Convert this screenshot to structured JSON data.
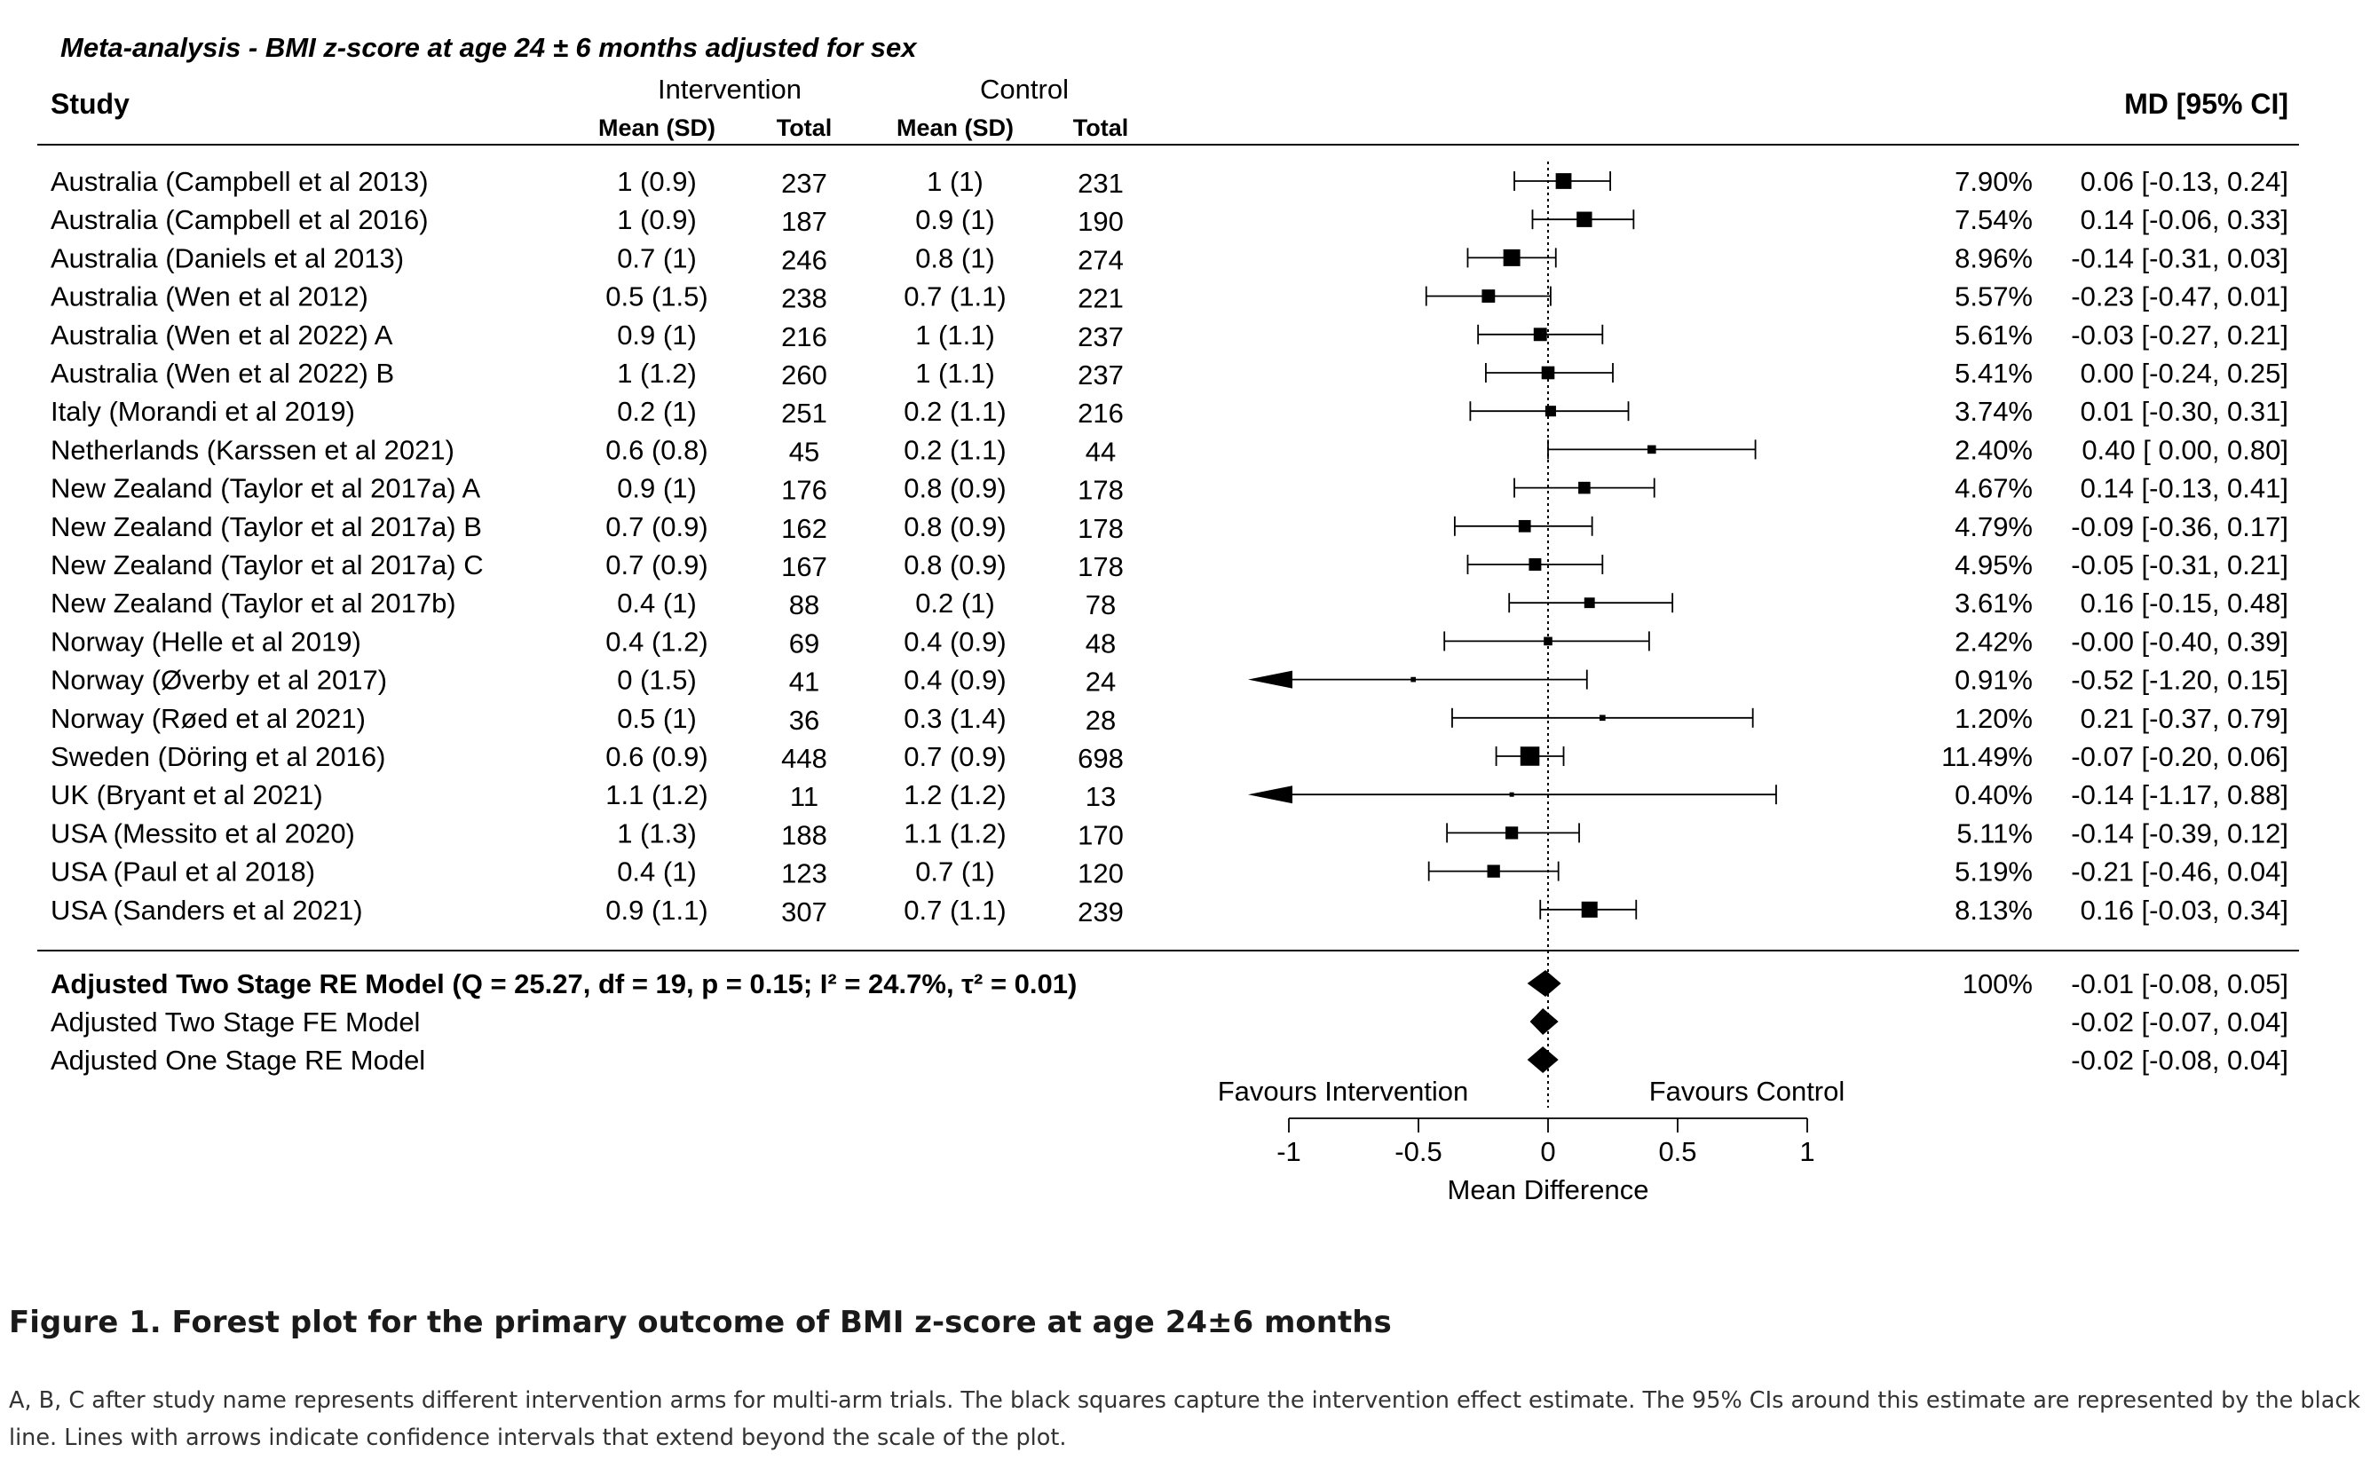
{
  "chart_data": {
    "type": "forest",
    "title": "Meta-analysis - BMI z-score at age 24 ± 6 months adjusted for sex",
    "headers": {
      "study": "Study",
      "intervention": "Intervention",
      "control": "Control",
      "mean_sd": "Mean (SD)",
      "total": "Total",
      "md_ci": "MD [95% CI]"
    },
    "xlabel": "Mean Difference",
    "xlim": [
      -1,
      1
    ],
    "xticks": [
      -1,
      -0.5,
      0,
      0.5,
      1
    ],
    "xtick_labels": [
      "-1",
      "-0.5",
      "0",
      "0.5",
      "1"
    ],
    "favours_left": "Favours Intervention",
    "favours_right": "Favours Control",
    "studies": [
      {
        "study": "Australia (Campbell et al 2013)",
        "i_msd": "1 (0.9)",
        "i_n": "237",
        "c_msd": "1 (1)",
        "c_n": "231",
        "weight": "7.90%",
        "ci": "0.06 [-0.13, 0.24]",
        "md": 0.06,
        "lo": -0.13,
        "hi": 0.24,
        "w": 7.9
      },
      {
        "study": "Australia (Campbell et al 2016)",
        "i_msd": "1 (0.9)",
        "i_n": "187",
        "c_msd": "0.9 (1)",
        "c_n": "190",
        "weight": "7.54%",
        "ci": "0.14 [-0.06, 0.33]",
        "md": 0.14,
        "lo": -0.06,
        "hi": 0.33,
        "w": 7.54
      },
      {
        "study": "Australia (Daniels et al 2013)",
        "i_msd": "0.7 (1)",
        "i_n": "246",
        "c_msd": "0.8 (1)",
        "c_n": "274",
        "weight": "8.96%",
        "ci": "-0.14 [-0.31, 0.03]",
        "md": -0.14,
        "lo": -0.31,
        "hi": 0.03,
        "w": 8.96
      },
      {
        "study": "Australia (Wen et al 2012)",
        "i_msd": "0.5 (1.5)",
        "i_n": "238",
        "c_msd": "0.7 (1.1)",
        "c_n": "221",
        "weight": "5.57%",
        "ci": "-0.23 [-0.47, 0.01]",
        "md": -0.23,
        "lo": -0.47,
        "hi": 0.01,
        "w": 5.57
      },
      {
        "study": "Australia (Wen et al 2022) A",
        "i_msd": "0.9 (1)",
        "i_n": "216",
        "c_msd": "1 (1.1)",
        "c_n": "237",
        "weight": "5.61%",
        "ci": "-0.03 [-0.27, 0.21]",
        "md": -0.03,
        "lo": -0.27,
        "hi": 0.21,
        "w": 5.61
      },
      {
        "study": "Australia (Wen et al 2022) B",
        "i_msd": "1 (1.2)",
        "i_n": "260",
        "c_msd": "1 (1.1)",
        "c_n": "237",
        "weight": "5.41%",
        "ci": "0.00 [-0.24, 0.25]",
        "md": 0.0,
        "lo": -0.24,
        "hi": 0.25,
        "w": 5.41
      },
      {
        "study": "Italy (Morandi et al 2019)",
        "i_msd": "0.2 (1)",
        "i_n": "251",
        "c_msd": "0.2 (1.1)",
        "c_n": "216",
        "weight": "3.74%",
        "ci": "0.01 [-0.30, 0.31]",
        "md": 0.01,
        "lo": -0.3,
        "hi": 0.31,
        "w": 3.74
      },
      {
        "study": "Netherlands (Karssen et al 2021)",
        "i_msd": "0.6 (0.8)",
        "i_n": "45",
        "c_msd": "0.2 (1.1)",
        "c_n": "44",
        "weight": "2.40%",
        "ci": "0.40 [ 0.00, 0.80]",
        "md": 0.4,
        "lo": 0.0,
        "hi": 0.8,
        "w": 2.4
      },
      {
        "study": "New Zealand (Taylor et al 2017a) A",
        "i_msd": "0.9 (1)",
        "i_n": "176",
        "c_msd": "0.8 (0.9)",
        "c_n": "178",
        "weight": "4.67%",
        "ci": "0.14 [-0.13, 0.41]",
        "md": 0.14,
        "lo": -0.13,
        "hi": 0.41,
        "w": 4.67
      },
      {
        "study": "New Zealand (Taylor et al 2017a) B",
        "i_msd": "0.7 (0.9)",
        "i_n": "162",
        "c_msd": "0.8 (0.9)",
        "c_n": "178",
        "weight": "4.79%",
        "ci": "-0.09 [-0.36, 0.17]",
        "md": -0.09,
        "lo": -0.36,
        "hi": 0.17,
        "w": 4.79
      },
      {
        "study": "New Zealand (Taylor et al 2017a) C",
        "i_msd": "0.7 (0.9)",
        "i_n": "167",
        "c_msd": "0.8 (0.9)",
        "c_n": "178",
        "weight": "4.95%",
        "ci": "-0.05 [-0.31, 0.21]",
        "md": -0.05,
        "lo": -0.31,
        "hi": 0.21,
        "w": 4.95
      },
      {
        "study": "New Zealand (Taylor et al 2017b)",
        "i_msd": "0.4 (1)",
        "i_n": "88",
        "c_msd": "0.2 (1)",
        "c_n": "78",
        "weight": "3.61%",
        "ci": "0.16 [-0.15, 0.48]",
        "md": 0.16,
        "lo": -0.15,
        "hi": 0.48,
        "w": 3.61
      },
      {
        "study": "Norway (Helle et al 2019)",
        "i_msd": "0.4 (1.2)",
        "i_n": "69",
        "c_msd": "0.4 (0.9)",
        "c_n": "48",
        "weight": "2.42%",
        "ci": "-0.00 [-0.40, 0.39]",
        "md": -0.0,
        "lo": -0.4,
        "hi": 0.39,
        "w": 2.42
      },
      {
        "study": "Norway (Øverby et al 2017)",
        "i_msd": "0 (1.5)",
        "i_n": "41",
        "c_msd": "0.4 (0.9)",
        "c_n": "24",
        "weight": "0.91%",
        "ci": "-0.52 [-1.20, 0.15]",
        "md": -0.52,
        "lo": -1.2,
        "hi": 0.15,
        "w": 0.91
      },
      {
        "study": "Norway (Røed et al 2021)",
        "i_msd": "0.5 (1)",
        "i_n": "36",
        "c_msd": "0.3 (1.4)",
        "c_n": "28",
        "weight": "1.20%",
        "ci": "0.21 [-0.37, 0.79]",
        "md": 0.21,
        "lo": -0.37,
        "hi": 0.79,
        "w": 1.2
      },
      {
        "study": "Sweden (Döring et al 2016)",
        "i_msd": "0.6 (0.9)",
        "i_n": "448",
        "c_msd": "0.7 (0.9)",
        "c_n": "698",
        "weight": "11.49%",
        "ci": "-0.07 [-0.20, 0.06]",
        "md": -0.07,
        "lo": -0.2,
        "hi": 0.06,
        "w": 11.49
      },
      {
        "study": "UK (Bryant et al 2021)",
        "i_msd": "1.1 (1.2)",
        "i_n": "11",
        "c_msd": "1.2 (1.2)",
        "c_n": "13",
        "weight": "0.40%",
        "ci": "-0.14 [-1.17, 0.88]",
        "md": -0.14,
        "lo": -1.17,
        "hi": 0.88,
        "w": 0.4
      },
      {
        "study": "USA (Messito et al 2020)",
        "i_msd": "1 (1.3)",
        "i_n": "188",
        "c_msd": "1.1 (1.2)",
        "c_n": "170",
        "weight": "5.11%",
        "ci": "-0.14 [-0.39, 0.12]",
        "md": -0.14,
        "lo": -0.39,
        "hi": 0.12,
        "w": 5.11
      },
      {
        "study": "USA (Paul et al 2018)",
        "i_msd": "0.4 (1)",
        "i_n": "123",
        "c_msd": "0.7 (1)",
        "c_n": "120",
        "weight": "5.19%",
        "ci": "-0.21 [-0.46, 0.04]",
        "md": -0.21,
        "lo": -0.46,
        "hi": 0.04,
        "w": 5.19
      },
      {
        "study": "USA (Sanders et al 2021)",
        "i_msd": "0.9 (1.1)",
        "i_n": "307",
        "c_msd": "0.7 (1.1)",
        "c_n": "239",
        "weight": "8.13%",
        "ci": "0.16 [-0.03, 0.34]",
        "md": 0.16,
        "lo": -0.03,
        "hi": 0.34,
        "w": 8.13
      }
    ],
    "summary": [
      {
        "label": "Adjusted Two Stage RE Model (Q = 25.27, df = 19, p = 0.15; I² = 24.7%, τ² = 0.01)",
        "bold": true,
        "weight": "100%",
        "ci": "-0.01 [-0.08, 0.05]",
        "md": -0.01,
        "lo": -0.08,
        "hi": 0.05
      },
      {
        "label": "Adjusted Two Stage FE Model",
        "bold": false,
        "weight": "",
        "ci": "-0.02 [-0.07, 0.04]",
        "md": -0.02,
        "lo": -0.07,
        "hi": 0.04
      },
      {
        "label": "Adjusted One Stage RE Model",
        "bold": false,
        "weight": "",
        "ci": "-0.02 [-0.08, 0.04]",
        "md": -0.02,
        "lo": -0.08,
        "hi": 0.04
      }
    ]
  },
  "caption": {
    "title": "Figure 1. Forest plot for the primary outcome of BMI z-score at age 24±6 months",
    "text": "A, B, C after study name represents different intervention arms for multi-arm trials. The black squares capture the intervention effect estimate. The 95% CIs around this estimate are represented by the black line. Lines with arrows indicate confidence intervals that extend beyond the scale of the plot."
  }
}
